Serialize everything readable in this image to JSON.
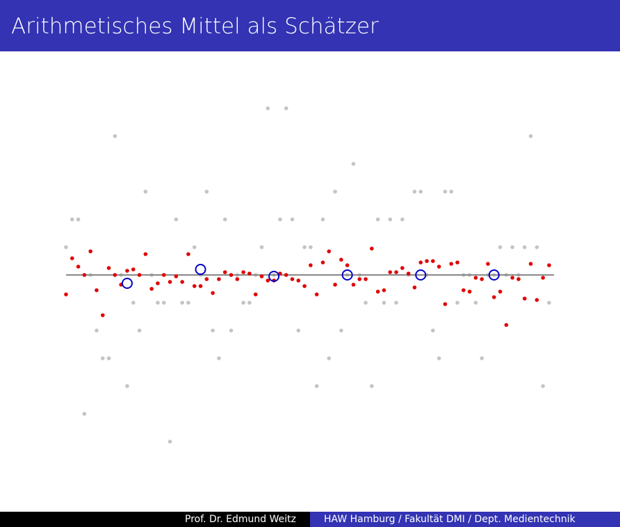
{
  "header": {
    "title": "Arithmetisches Mittel als Schätzer"
  },
  "chart_data": {
    "type": "scatter",
    "xlim": [
      0,
      79
    ],
    "ylim": [
      -7,
      7
    ],
    "hline": 0,
    "hline_color": "#888888",
    "series": [
      {
        "color": "#c4c4c4",
        "marker": "dot",
        "x": [
          0,
          1,
          2,
          3,
          4,
          5,
          6,
          7,
          8,
          9,
          10,
          11,
          12,
          13,
          14,
          15,
          16,
          17,
          18,
          19,
          20,
          21,
          22,
          23,
          24,
          25,
          26,
          27,
          28,
          29,
          30,
          31,
          32,
          33,
          34,
          35,
          36,
          37,
          38,
          39,
          40,
          41,
          42,
          43,
          44,
          45,
          46,
          47,
          48,
          49,
          50,
          51,
          52,
          53,
          54,
          55,
          56,
          57,
          58,
          59,
          60,
          61,
          62,
          63,
          64,
          65,
          66,
          67,
          68,
          69,
          70,
          71,
          72,
          73,
          74,
          75,
          76,
          77,
          78,
          79
        ],
        "values": [
          1,
          2,
          2,
          -5,
          0,
          -2,
          -3,
          -3,
          5,
          0,
          -4,
          -1,
          -2,
          3,
          0,
          -1,
          -1,
          -6,
          2,
          -1,
          -1,
          1,
          0,
          3,
          -2,
          -3,
          2,
          -2,
          0,
          -1,
          -1,
          0,
          1,
          6,
          0,
          2,
          6,
          2,
          -2,
          1,
          1,
          -4,
          2,
          -3,
          3,
          -2,
          0,
          4,
          0,
          -1,
          -4,
          2,
          -1,
          2,
          -1,
          2,
          0,
          3,
          3,
          0,
          -2,
          -3,
          3,
          3,
          -1,
          0,
          0,
          -1,
          -3,
          0,
          0,
          1,
          0,
          1,
          0,
          1,
          5,
          1,
          -4,
          -1
        ]
      },
      {
        "color": "#e00000",
        "marker": "dot",
        "x": [
          0,
          1,
          2,
          3,
          4,
          5,
          6,
          7,
          8,
          9,
          10,
          11,
          12,
          13,
          14,
          15,
          16,
          17,
          18,
          19,
          20,
          21,
          22,
          23,
          24,
          25,
          26,
          27,
          28,
          29,
          30,
          31,
          32,
          33,
          34,
          35,
          36,
          37,
          38,
          39,
          40,
          41,
          42,
          43,
          44,
          45,
          46,
          47,
          48,
          49,
          50,
          51,
          52,
          53,
          54,
          55,
          56,
          57,
          58,
          59,
          60,
          61,
          62,
          63,
          64,
          65,
          66,
          67,
          68,
          69,
          70,
          71,
          72,
          73,
          74,
          75,
          76,
          77,
          78,
          79
        ],
        "values": [
          -0.7,
          0.6,
          0.3,
          0,
          0.85,
          -0.55,
          -1.45,
          0.25,
          0,
          -0.35,
          0.15,
          0.2,
          0,
          0.75,
          -0.5,
          -0.3,
          0,
          -0.25,
          -0.05,
          -0.25,
          0.75,
          -0.4,
          -0.4,
          -0.15,
          -0.65,
          -0.15,
          0.1,
          0,
          -0.15,
          0.1,
          0.05,
          -0.7,
          -0.05,
          -0.2,
          -0.2,
          0.05,
          0,
          -0.15,
          -0.2,
          -0.4,
          0.35,
          -0.7,
          0.45,
          0.85,
          -0.35,
          0.55,
          0.35,
          -0.35,
          -0.15,
          -0.15,
          0.95,
          -0.6,
          -0.55,
          0.1,
          0.1,
          0.25,
          0.05,
          -0.45,
          0.45,
          0.5,
          0.5,
          0.3,
          -1.05,
          0.4,
          0.45,
          -0.55,
          -0.6,
          -0.1,
          -0.15,
          0.4,
          -0.8,
          -0.6,
          -1.8,
          -0.1,
          -0.15,
          -0.85,
          0.4,
          -0.9,
          -0.1,
          0.35
        ]
      },
      {
        "color": "#0000c8",
        "marker": "ring",
        "x": [
          10,
          22,
          34,
          46,
          58,
          70
        ],
        "values": [
          -0.3,
          0.2,
          -0.05,
          0,
          0,
          0
        ]
      }
    ]
  },
  "footer": {
    "author": "Prof. Dr. Edmund Weitz",
    "affiliation": "HAW Hamburg / Fakultät DMI / Dept. Medientechnik"
  }
}
